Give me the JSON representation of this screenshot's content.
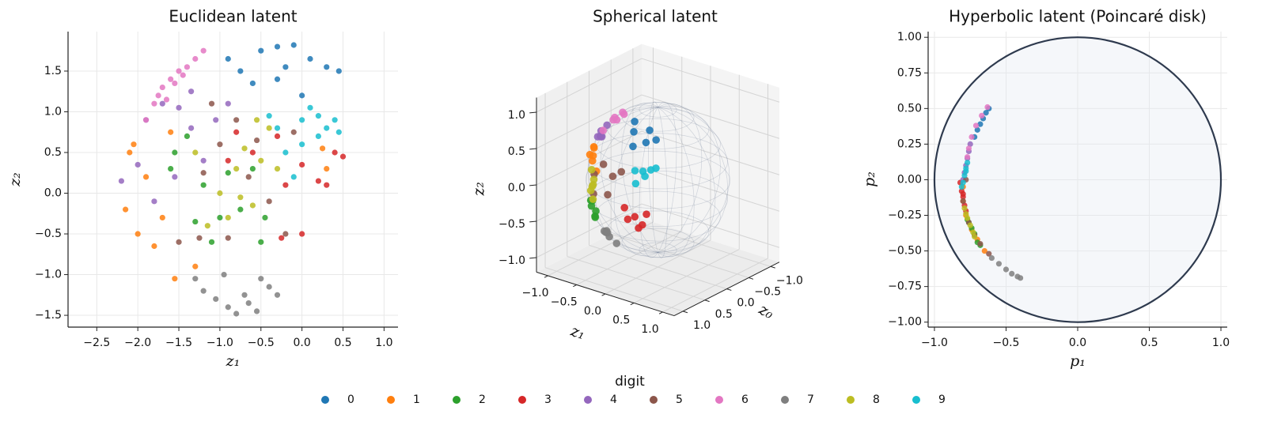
{
  "legend_title": "digit",
  "chart_data": [
    {
      "type": "scatter",
      "title": "Euclidean latent",
      "xlabel": "z₁",
      "ylabel": "z₂",
      "xlim": [
        -2.85,
        1.17
      ],
      "ylim": [
        -1.645,
        1.985
      ],
      "grid": true,
      "xticks": [
        {
          "value": -2.5,
          "label": "−2.5"
        },
        {
          "value": -2.0,
          "label": "−2.0"
        },
        {
          "value": -1.5,
          "label": "−1.5"
        },
        {
          "value": -1.0,
          "label": "−1.0"
        },
        {
          "value": -0.5,
          "label": "−0.5"
        },
        {
          "value": 0,
          "label": "0.0"
        },
        0.5,
        {
          "value": 1,
          "label": "1.0"
        }
      ],
      "yticks": [
        {
          "value": -1.5,
          "label": "−1.5"
        },
        {
          "value": -1.0,
          "label": "−1.0"
        },
        {
          "value": -0.5,
          "label": "−0.5"
        },
        {
          "value": 0,
          "label": "0.0"
        },
        0.5,
        {
          "value": 1,
          "label": "1.0"
        },
        1.5
      ],
      "series": [
        {
          "name": "0",
          "color": "#1f77b4",
          "x": [
            -0.9,
            -0.5,
            -0.3,
            -0.1,
            0.1,
            0.3,
            -0.6,
            -0.3,
            0,
            -0.2,
            0.45,
            -0.75
          ],
          "y": [
            1.65,
            1.75,
            1.8,
            1.82,
            1.65,
            1.55,
            1.35,
            1.4,
            1.2,
            1.55,
            1.5,
            1.5
          ]
        },
        {
          "name": "1",
          "color": "#ff7f0e",
          "x": [
            -2.1,
            -2.15,
            -2.0,
            -1.9,
            -1.8,
            -1.6,
            -1.55,
            -1.3,
            -2.05,
            0.3,
            -1.7,
            0.25
          ],
          "y": [
            0.5,
            -0.2,
            -0.5,
            0.2,
            -0.65,
            0.75,
            -1.05,
            -0.9,
            0.6,
            0.3,
            -0.3,
            0.55
          ]
        },
        {
          "name": "2",
          "color": "#2ca02c",
          "x": [
            -1.6,
            -1.4,
            -1.2,
            -1.1,
            -0.9,
            -0.75,
            -0.6,
            -0.5,
            -1.3,
            -1.0,
            -0.45,
            -1.55
          ],
          "y": [
            0.3,
            0.7,
            0.1,
            -0.6,
            0.25,
            -0.2,
            0.3,
            -0.6,
            -0.35,
            -0.3,
            -0.3,
            0.5
          ]
        },
        {
          "name": "3",
          "color": "#d62728",
          "x": [
            -0.9,
            -0.6,
            -0.3,
            0,
            0.2,
            0.4,
            0.3,
            -0.2,
            0.5,
            0,
            -0.25,
            -0.8
          ],
          "y": [
            0.4,
            0.5,
            0.7,
            0.35,
            0.15,
            0.5,
            0.1,
            0.1,
            0.45,
            -0.5,
            -0.55,
            0.75
          ]
        },
        {
          "name": "4",
          "color": "#9467bd",
          "x": [
            -2.2,
            -1.9,
            -1.7,
            -1.5,
            -1.35,
            -1.2,
            -1.05,
            -1.55,
            -0.9,
            -1.8,
            -2.0,
            -1.35
          ],
          "y": [
            0.15,
            0.9,
            1.1,
            1.05,
            1.25,
            0.4,
            0.9,
            0.2,
            1.1,
            -0.1,
            0.35,
            0.8
          ]
        },
        {
          "name": "5",
          "color": "#8c564b",
          "x": [
            -1.5,
            -1.2,
            -1.0,
            -0.8,
            -0.55,
            -0.4,
            -0.2,
            -0.1,
            -1.25,
            -0.65,
            -1.1,
            -0.9
          ],
          "y": [
            -0.6,
            0.25,
            0.6,
            0.9,
            0.65,
            -0.1,
            -0.5,
            0.75,
            -0.55,
            0.2,
            1.1,
            -0.55
          ]
        },
        {
          "name": "6",
          "color": "#e377c2",
          "x": [
            -1.9,
            -1.8,
            -1.7,
            -1.6,
            -1.5,
            -1.4,
            -1.3,
            -1.2,
            -1.75,
            -1.55,
            -1.45,
            -1.65
          ],
          "y": [
            0.9,
            1.1,
            1.3,
            1.4,
            1.5,
            1.55,
            1.65,
            1.75,
            1.2,
            1.35,
            1.45,
            1.15
          ]
        },
        {
          "name": "7",
          "color": "#7f7f7f",
          "x": [
            -1.2,
            -1.05,
            -0.9,
            -0.8,
            -0.65,
            -0.55,
            -0.5,
            -0.4,
            -0.3,
            -0.95,
            -1.3,
            -0.7
          ],
          "y": [
            -1.2,
            -1.3,
            -1.4,
            -1.48,
            -1.35,
            -1.45,
            -1.05,
            -1.15,
            -1.25,
            -1.0,
            -1.05,
            -1.25
          ]
        },
        {
          "name": "8",
          "color": "#bcbd22",
          "x": [
            -1.3,
            -1.0,
            -0.9,
            -0.8,
            -0.7,
            -0.6,
            -0.5,
            -0.4,
            -0.3,
            -1.15,
            -0.75,
            -0.55
          ],
          "y": [
            0.5,
            0,
            -0.3,
            0.3,
            0.55,
            -0.15,
            0.4,
            0.8,
            0.3,
            -0.4,
            -0.05,
            0.9
          ]
        },
        {
          "name": "9",
          "color": "#17becf",
          "x": [
            -0.4,
            -0.3,
            -0.2,
            0,
            0.1,
            0.2,
            0.3,
            0.4,
            0.45,
            0,
            -0.1,
            0.2
          ],
          "y": [
            0.95,
            0.8,
            0.5,
            0.9,
            1.05,
            0.7,
            0.8,
            0.9,
            0.75,
            0.6,
            0.2,
            0.95
          ]
        }
      ]
    },
    {
      "type": "scatter3d",
      "title": "Spherical latent",
      "xlabel": "z₀",
      "ylabel": "z₁",
      "zlabel": "z₂",
      "xlim": [
        -1.2,
        1.2
      ],
      "ylim": [
        -1.2,
        1.2
      ],
      "zlim": [
        -1.2,
        1.2
      ],
      "xticks": [
        {
          "value": -1,
          "label": "−1.0"
        },
        {
          "value": -0.5,
          "label": "−0.5"
        },
        {
          "value": 0,
          "label": "0.0"
        },
        0.5,
        {
          "value": 1,
          "label": "1.0"
        }
      ],
      "yticks": [
        {
          "value": -1,
          "label": "−1.0"
        },
        {
          "value": -0.5,
          "label": "−0.5"
        },
        {
          "value": 0,
          "label": "0.0"
        },
        0.5,
        {
          "value": 1,
          "label": "1.0"
        }
      ],
      "zticks": [
        {
          "value": -1,
          "label": "−1.0"
        },
        {
          "value": -0.5,
          "label": "−0.5"
        },
        {
          "value": 0,
          "label": "0.0"
        },
        0.5,
        {
          "value": 1,
          "label": "1.0"
        }
      ],
      "series": [
        {
          "name": "0",
          "color": "#1f77b4",
          "z0": [
            0.55,
            0.45,
            0.6,
            0.4,
            0.7,
            0.5
          ],
          "z1": [
            0,
            0.2,
            0.25,
            -0.1,
            0.1,
            0.35
          ],
          "z2": [
            0.83,
            0.87,
            0.76,
            0.9,
            0.7,
            0.79
          ]
        },
        {
          "name": "1",
          "color": "#ff7f0e",
          "z0": [
            0.3,
            0.25,
            0.35,
            0.2,
            0.4,
            0.28
          ],
          "z1": [
            -0.9,
            -0.95,
            -0.85,
            -0.92,
            -0.88,
            -0.9
          ],
          "z2": [
            0.2,
            0.1,
            0.35,
            -0.05,
            0.25,
            0.3
          ]
        },
        {
          "name": "2",
          "color": "#2ca02c",
          "z0": [
            0.55,
            0.5,
            0.6,
            0.45,
            0.65,
            0.58
          ],
          "z1": [
            -0.75,
            -0.7,
            -0.7,
            -0.8,
            -0.6,
            -0.65
          ],
          "z2": [
            -0.3,
            -0.45,
            -0.35,
            -0.35,
            -0.45,
            -0.5
          ]
        },
        {
          "name": "3",
          "color": "#d62728",
          "z0": [
            0.92,
            0.88,
            0.95,
            0.85,
            0.9,
            0.96
          ],
          "z1": [
            0.3,
            0.4,
            0.2,
            0.45,
            0.35,
            0.15
          ],
          "z2": [
            -0.15,
            -0.25,
            -0.2,
            -0.1,
            -0.3,
            -0.05
          ]
        },
        {
          "name": "4",
          "color": "#9467bd",
          "z0": [
            0.2,
            0.15,
            0.25,
            0.1,
            0.3,
            0.18
          ],
          "z1": [
            -0.85,
            -0.88,
            -0.8,
            -0.9,
            -0.82,
            -0.75
          ],
          "z2": [
            0.45,
            0.42,
            0.55,
            0.4,
            0.48,
            0.62
          ]
        },
        {
          "name": "5",
          "color": "#8c564b",
          "z0": [
            0.9,
            0.85,
            0.8,
            0.9,
            0.75,
            0.95
          ],
          "z1": [
            -0.1,
            -0.3,
            -0.5,
            0.05,
            -0.55,
            -0.15
          ],
          "z2": [
            0.3,
            0.4,
            0.2,
            0.4,
            -0.1,
            0.05
          ]
        },
        {
          "name": "6",
          "color": "#e377c2",
          "z0": [
            0.3,
            0.2,
            0.35,
            0.15,
            0.4,
            0.25
          ],
          "z1": [
            -0.55,
            -0.6,
            -0.45,
            -0.5,
            -0.65,
            -0.4
          ],
          "z2": [
            0.78,
            0.77,
            0.82,
            0.85,
            0.64,
            0.88
          ]
        },
        {
          "name": "7",
          "color": "#7f7f7f",
          "z0": [
            0.6,
            0.5,
            0.65,
            0.55,
            0.45,
            0.7
          ],
          "z1": [
            -0.45,
            -0.5,
            -0.35,
            -0.3,
            -0.55,
            -0.4
          ],
          "z2": [
            -0.65,
            -0.7,
            -0.67,
            -0.78,
            -0.7,
            -0.59
          ]
        },
        {
          "name": "8",
          "color": "#bcbd22",
          "z0": [
            0.35,
            0.3,
            0.45,
            0.4,
            0.5,
            0.38
          ],
          "z1": [
            -0.85,
            -0.9,
            -0.8,
            -0.85,
            -0.75,
            -0.88
          ],
          "z2": [
            -0.1,
            -0.2,
            -0.15,
            0.05,
            -0.3,
            -0.25
          ]
        },
        {
          "name": "9",
          "color": "#17becf",
          "z0": [
            0.8,
            0.75,
            0.85,
            0.7,
            0.9,
            0.82
          ],
          "z1": [
            0.35,
            0.45,
            0.25,
            0.5,
            0.3,
            0.4
          ],
          "z2": [
            0.45,
            0.48,
            0.45,
            0.5,
            0.3,
            0.4
          ]
        }
      ]
    },
    {
      "type": "scatter",
      "title": "Hyperbolic latent (Poincaré disk)",
      "xlabel": "p₁",
      "ylabel": "p₂",
      "unit_disk": true,
      "xlim": [
        -1.044,
        1.044
      ],
      "ylim": [
        -1.035,
        1.04
      ],
      "grid": true,
      "xticks": [
        {
          "value": -1,
          "label": "−1.0"
        },
        {
          "value": -0.5,
          "label": "−0.5"
        },
        {
          "value": 0,
          "label": "0.0"
        },
        0.5,
        {
          "value": 1,
          "label": "1.0"
        }
      ],
      "yticks": [
        {
          "value": -1,
          "label": "−1.00"
        },
        {
          "value": -0.75,
          "label": "−0.75"
        },
        {
          "value": -0.5,
          "label": "−0.50"
        },
        {
          "value": -0.25,
          "label": "−0.25"
        },
        {
          "value": 0,
          "label": "0.00"
        },
        0.25,
        {
          "value": 0.5,
          "label": "0.50"
        },
        0.75,
        {
          "value": 1,
          "label": "1.00"
        }
      ],
      "series": [
        {
          "name": "0",
          "color": "#1f77b4",
          "x": [
            -0.62,
            -0.64,
            -0.66,
            -0.68,
            -0.7,
            -0.72
          ],
          "y": [
            0.5,
            0.47,
            0.43,
            0.39,
            0.35,
            0.3
          ]
        },
        {
          "name": "1",
          "color": "#ff7f0e",
          "x": [
            -0.8,
            -0.8,
            -0.78,
            -0.74,
            -0.7,
            -0.65
          ],
          "y": [
            -0.05,
            -0.15,
            -0.25,
            -0.35,
            -0.42,
            -0.5
          ]
        },
        {
          "name": "2",
          "color": "#2ca02c",
          "x": [
            -0.77,
            -0.74,
            -0.72,
            -0.7,
            -0.68,
            -0.76
          ],
          "y": [
            -0.28,
            -0.34,
            -0.38,
            -0.44,
            -0.46,
            -0.3
          ]
        },
        {
          "name": "3",
          "color": "#d62728",
          "x": [
            -0.82,
            -0.81,
            -0.8,
            -0.79,
            -0.8,
            -0.78
          ],
          "y": [
            -0.02,
            -0.08,
            -0.12,
            -0.18,
            -0.1,
            -0.22
          ]
        },
        {
          "name": "4",
          "color": "#9467bd",
          "x": [
            -0.75,
            -0.77,
            -0.78,
            -0.79,
            -0.8,
            -0.76
          ],
          "y": [
            0.25,
            0.15,
            0.1,
            0.05,
            0,
            0.2
          ]
        },
        {
          "name": "5",
          "color": "#8c564b",
          "x": [
            -0.8,
            -0.76,
            -0.72,
            -0.68,
            -0.62,
            -0.78
          ],
          "y": [
            -0.15,
            -0.3,
            -0.39,
            -0.45,
            -0.52,
            0
          ]
        },
        {
          "name": "6",
          "color": "#e377c2",
          "x": [
            -0.63,
            -0.67,
            -0.71,
            -0.74,
            -0.76,
            -0.77
          ],
          "y": [
            0.51,
            0.45,
            0.38,
            0.3,
            0.22,
            0.16
          ]
        },
        {
          "name": "7",
          "color": "#7f7f7f",
          "x": [
            -0.6,
            -0.55,
            -0.5,
            -0.46,
            -0.42,
            -0.4
          ],
          "y": [
            -0.55,
            -0.59,
            -0.63,
            -0.66,
            -0.68,
            -0.69
          ]
        },
        {
          "name": "8",
          "color": "#bcbd22",
          "x": [
            -0.79,
            -0.77,
            -0.75,
            -0.73,
            -0.72,
            -0.78
          ],
          "y": [
            -0.2,
            -0.27,
            -0.32,
            -0.37,
            -0.4,
            -0.24
          ]
        },
        {
          "name": "9",
          "color": "#17becf",
          "x": [
            -0.78,
            -0.79,
            -0.8,
            -0.77,
            -0.81,
            -0.78
          ],
          "y": [
            0.08,
            0.03,
            -0.02,
            0.12,
            -0.05,
            0.06
          ]
        }
      ]
    }
  ]
}
